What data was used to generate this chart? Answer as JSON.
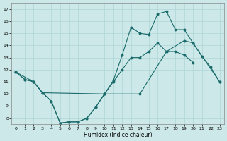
{
  "xlabel": "Humidex (Indice chaleur)",
  "background_color": "#cde8e8",
  "line_color": "#1a6b6b",
  "xlim": [
    -0.5,
    23.5
  ],
  "ylim": [
    7.5,
    17.5
  ],
  "xticks": [
    0,
    1,
    2,
    3,
    4,
    5,
    6,
    7,
    8,
    9,
    10,
    11,
    12,
    13,
    14,
    15,
    16,
    17,
    18,
    19,
    20,
    21,
    22,
    23
  ],
  "yticks": [
    8,
    9,
    10,
    11,
    12,
    13,
    14,
    15,
    16,
    17
  ],
  "grid_color": "#aed4d4",
  "series1": {
    "x": [
      0,
      1,
      2,
      3,
      4,
      5,
      6,
      7,
      8,
      9,
      10,
      11,
      12,
      13,
      14,
      15,
      16,
      17,
      18,
      19,
      20,
      21,
      22,
      23
    ],
    "y": [
      11.8,
      11.2,
      11.0,
      10.1,
      9.4,
      7.6,
      7.7,
      7.7,
      8.0,
      8.9,
      10.0,
      11.1,
      13.2,
      15.5,
      15.0,
      14.9,
      16.6,
      16.8,
      15.3,
      15.3,
      14.2,
      13.1,
      12.2,
      11.0
    ]
  },
  "series2": {
    "x": [
      0,
      2,
      3,
      10,
      14,
      17,
      19,
      20,
      23
    ],
    "y": [
      11.8,
      11.0,
      10.1,
      10.0,
      10.0,
      13.5,
      14.4,
      14.2,
      11.0
    ]
  },
  "series3": {
    "x": [
      0,
      1,
      2,
      3,
      4,
      5,
      6,
      7,
      8,
      9,
      10,
      11,
      12,
      13,
      14,
      15,
      16,
      17,
      18,
      19,
      20,
      21,
      22,
      23
    ],
    "y": [
      11.8,
      11.2,
      11.0,
      10.1,
      9.4,
      7.6,
      7.7,
      7.7,
      8.0,
      8.9,
      10.0,
      11.0,
      12.0,
      13.0,
      13.0,
      13.5,
      14.2,
      13.5,
      13.5,
      13.2,
      12.6,
      null,
      null,
      null
    ]
  }
}
